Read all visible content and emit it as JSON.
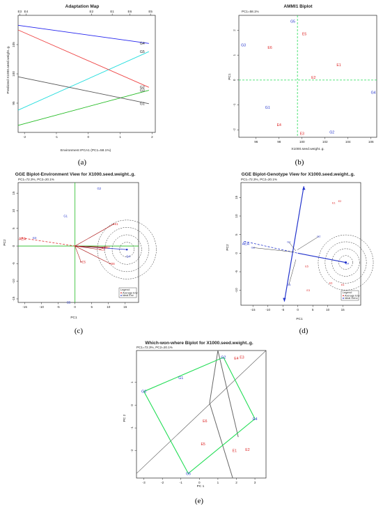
{
  "colors": {
    "env": "#dd2222",
    "gen": "#2233cc",
    "green": "#22bb22",
    "brightGreen": "#22dd55",
    "dark": "#444444",
    "blue": "#2222ee",
    "arrow": "#aa1111"
  },
  "chart_data": [
    {
      "id": "a",
      "type": "line",
      "title": "Adaptation Map",
      "caption": "(a)",
      "xlabel": "Environment IPCA1 (PC1=58.1%)",
      "ylabel": "Predicted X1000.seed.weight..g.",
      "xlim": [
        -2.2,
        2.1
      ],
      "ylim": [
        90,
        110
      ],
      "xticks": [
        -2,
        -1,
        0,
        1,
        2
      ],
      "yticks": [
        95,
        100,
        105
      ],
      "top_ticks": [
        {
          "label": "E3",
          "x": -2.15
        },
        {
          "label": "E4",
          "x": -1.95
        },
        {
          "label": "E2",
          "x": 0.1
        },
        {
          "label": "E1",
          "x": 0.75
        },
        {
          "label": "E6",
          "x": 1.3
        },
        {
          "label": "E5",
          "x": 1.95
        }
      ],
      "series": [
        {
          "name": "G4",
          "color": "#2222ee",
          "x": [
            -2.2,
            1.9
          ],
          "y": [
            108.3,
            105.2
          ]
        },
        {
          "name": "G5",
          "color": "#22dddd",
          "x": [
            -2.2,
            1.9
          ],
          "y": [
            93.8,
            103.8
          ]
        },
        {
          "name": "G2",
          "color": "#ee4444",
          "x": [
            -2.2,
            1.9
          ],
          "y": [
            107.5,
            97.7
          ]
        },
        {
          "name": "G3",
          "color": "#22bb22",
          "x": [
            -2.2,
            1.9
          ],
          "y": [
            91.2,
            97.2
          ]
        },
        {
          "name": "G1",
          "color": "#555555",
          "x": [
            -2.2,
            1.9
          ],
          "y": [
            99.5,
            94.9
          ]
        }
      ]
    },
    {
      "id": "b",
      "type": "scatter",
      "title": "AMMI1 Biplot",
      "subtitle": "PC1=58.1%",
      "caption": "(b)",
      "xlabel": "X1000.seed.weight..g.",
      "ylabel": "PC1",
      "xlim": [
        94.5,
        106.5
      ],
      "ylim": [
        -2.3,
        2.6
      ],
      "xticks": [
        96,
        98,
        100,
        102,
        104,
        106
      ],
      "yticks": [
        -2,
        -1,
        0,
        1,
        2
      ],
      "mean_x": 99.6,
      "points": [
        {
          "label": "G5",
          "x": 99.2,
          "y": 2.35,
          "kind": "gen"
        },
        {
          "label": "E5",
          "x": 100.2,
          "y": 1.85,
          "kind": "env"
        },
        {
          "label": "G3",
          "x": 94.9,
          "y": 1.4,
          "kind": "gen"
        },
        {
          "label": "E6",
          "x": 97.2,
          "y": 1.3,
          "kind": "env"
        },
        {
          "label": "E1",
          "x": 103.2,
          "y": 0.6,
          "kind": "env"
        },
        {
          "label": "E2",
          "x": 101.0,
          "y": 0.1,
          "kind": "env"
        },
        {
          "label": "G4",
          "x": 106.2,
          "y": -0.5,
          "kind": "gen"
        },
        {
          "label": "G1",
          "x": 97.0,
          "y": -1.1,
          "kind": "gen"
        },
        {
          "label": "E4",
          "x": 98.0,
          "y": -1.8,
          "kind": "env"
        },
        {
          "label": "E3",
          "x": 100.0,
          "y": -2.15,
          "kind": "env"
        },
        {
          "label": "G2",
          "x": 102.6,
          "y": -2.1,
          "kind": "gen"
        }
      ]
    },
    {
      "id": "c",
      "type": "scatter",
      "title": "GGE Biplot-Environment View for X1000.seed.weight..g.",
      "subtitle": "PC1=72.3%, PC2=20.1%",
      "caption": "(c)",
      "xlabel": "PC1",
      "ylabel": "PC2",
      "xlim": [
        -17,
        19
      ],
      "ylim": [
        -16,
        18
      ],
      "xticks": [
        -15,
        -10,
        -5,
        0,
        5,
        10,
        15
      ],
      "yticks": [
        -15,
        -10,
        -5,
        0,
        5,
        10,
        15
      ],
      "aec_label": "AEA",
      "ideal": {
        "x": 15.5,
        "y": -1.0
      },
      "rings": [
        2.2,
        4.4,
        6.6,
        8.8
      ],
      "points": [
        {
          "label": "G2",
          "x": 6.3,
          "y": 16.3,
          "kind": "gen"
        },
        {
          "label": "G1",
          "x": -3.7,
          "y": 8.5,
          "kind": "gen"
        },
        {
          "label": "G3",
          "x": -13.0,
          "y": 2.3,
          "kind": "gen"
        },
        {
          "label": "G4",
          "x": 15.0,
          "y": -3.0,
          "kind": "gen"
        },
        {
          "label": "G5",
          "x": -2.8,
          "y": -16.0,
          "kind": "gen"
        },
        {
          "label": "E1",
          "x": 11.5,
          "y": 6.2,
          "kind": "env"
        },
        {
          "label": "E2",
          "x": 9.0,
          "y": -0.3,
          "kind": "env"
        },
        {
          "label": "E3",
          "x": 7.5,
          "y": -1.0,
          "kind": "env"
        },
        {
          "label": "E4",
          "x": 8.3,
          "y": -0.5,
          "kind": "env"
        },
        {
          "label": "E5",
          "x": 1.8,
          "y": -4.5,
          "kind": "env"
        },
        {
          "label": "E6",
          "x": 10.5,
          "y": -5.0,
          "kind": "env"
        }
      ],
      "legend": [
        "Legend:",
        "Average Env",
        "Ideal Env"
      ]
    },
    {
      "id": "d",
      "type": "scatter",
      "title": "GGE Biplot-Genotype View for X1000.seed.weight..g.",
      "subtitle": "PC1=72.3%, PC2=20.1%",
      "caption": "(d)",
      "xlabel": "PC1",
      "ylabel": "PC2",
      "xlim": [
        -19,
        21
      ],
      "ylim": [
        -14,
        19
      ],
      "xticks": [
        -15,
        -10,
        -5,
        0,
        5,
        10,
        15
      ],
      "yticks": [
        -10,
        -5,
        0,
        5,
        10,
        15
      ],
      "aec_label": "AEA",
      "ideal": {
        "x": 16.0,
        "y": -2.5
      },
      "rings": [
        2.3,
        4.6,
        6.9,
        9.2
      ],
      "points": [
        {
          "label": "G2",
          "x": 7.0,
          "y": 4.5,
          "kind": "gen"
        },
        {
          "label": "G1",
          "x": -3.0,
          "y": 3.0,
          "kind": "gen"
        },
        {
          "label": "G3",
          "x": -15.0,
          "y": 1.5,
          "kind": "gen"
        },
        {
          "label": "G5",
          "x": -3.0,
          "y": -8.5,
          "kind": "gen"
        },
        {
          "label": "G4",
          "x": 16.5,
          "y": -2.8,
          "kind": "gen"
        },
        {
          "label": "E1",
          "x": 12.0,
          "y": 13.5,
          "kind": "env"
        },
        {
          "label": "E2",
          "x": 14.0,
          "y": 14.0,
          "kind": "env"
        },
        {
          "label": "E5",
          "x": 3.0,
          "y": -3.5,
          "kind": "env"
        },
        {
          "label": "E3",
          "x": 3.5,
          "y": -10.0,
          "kind": "env"
        },
        {
          "label": "E6",
          "x": 11.0,
          "y": -8.0,
          "kind": "env"
        },
        {
          "label": "E4",
          "x": 15.0,
          "y": -8.5,
          "kind": "env"
        }
      ],
      "legend": [
        "Legend:",
        "Average Env",
        "Ideal Geno"
      ]
    },
    {
      "id": "e",
      "type": "scatter",
      "title": "Which-won-where Biplot for X1000.seed.weight..g.",
      "subtitle": "PC1=72.3%, PC2=20.1%",
      "caption": "(e)",
      "xlabel": "PC 1",
      "ylabel": "PC 2",
      "xlim": [
        -3.4,
        3.6
      ],
      "ylim": [
        -3.2,
        2.4
      ],
      "xticks": [
        -3,
        -2,
        -1,
        0,
        1,
        2,
        3
      ],
      "yticks": [
        -2,
        -1,
        0,
        1
      ],
      "polygon": [
        {
          "label": "G2",
          "x": 1.3,
          "y": 2.1
        },
        {
          "label": "G4",
          "x": 3.0,
          "y": -0.6
        },
        {
          "label": "G5",
          "x": -0.6,
          "y": -3.0
        },
        {
          "label": "G3",
          "x": -3.0,
          "y": 0.6
        }
      ],
      "inner": [
        {
          "label": "G1",
          "x": -1.0,
          "y": 1.2
        }
      ],
      "envs": [
        {
          "label": "E4",
          "x": 2.0,
          "y": 2.05
        },
        {
          "label": "E3",
          "x": 2.3,
          "y": 2.1
        },
        {
          "label": "E6",
          "x": 0.3,
          "y": -0.7
        },
        {
          "label": "E5",
          "x": 0.2,
          "y": -1.7
        },
        {
          "label": "E1",
          "x": 1.9,
          "y": -2.0
        },
        {
          "label": "E2",
          "x": 2.6,
          "y": -1.95
        }
      ],
      "sectors": [
        {
          "x": [
            1.0,
            2.1
          ],
          "y": [
            2.4,
            -1.4
          ]
        },
        {
          "x": [
            1.0,
            0.55
          ],
          "y": [
            2.4,
            0.1
          ]
        },
        {
          "x": [
            0.55,
            1.8
          ],
          "y": [
            0.1,
            -3.2
          ]
        },
        {
          "x": [
            -3.4,
            3.6
          ],
          "y": [
            -3.0,
            2.4
          ]
        }
      ]
    }
  ]
}
